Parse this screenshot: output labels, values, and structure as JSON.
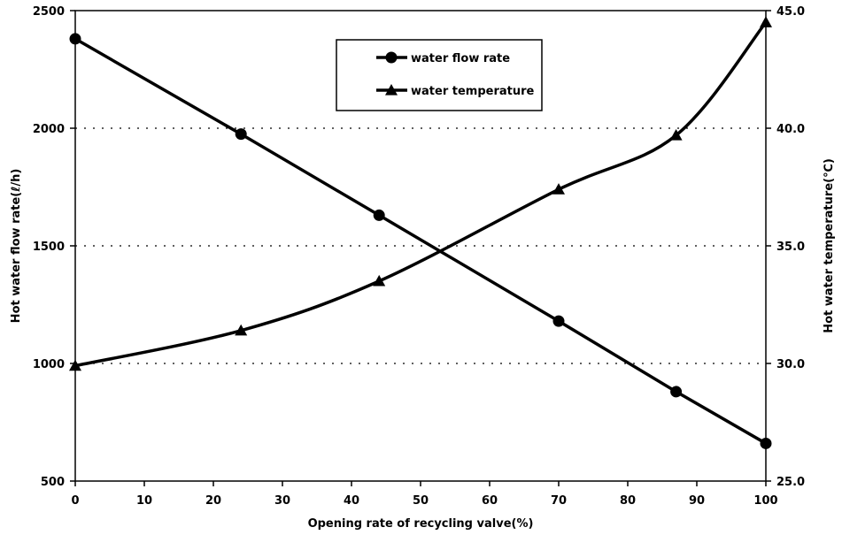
{
  "chart_data": {
    "type": "line",
    "xlabel": "Opening rate of recycling valve(%)",
    "ylabel_left": "Hot water flow rate(ℓ/h)",
    "ylabel_right": "Hot water temperature(℃)",
    "xlim": [
      0,
      100
    ],
    "ylim_left": [
      500,
      2500
    ],
    "ylim_right": [
      25.0,
      45.0
    ],
    "x_ticks": [
      "0",
      "10",
      "20",
      "30",
      "40",
      "50",
      "60",
      "70",
      "80",
      "90",
      "100"
    ],
    "y_left_ticks": [
      "500",
      "1000",
      "1500",
      "2000",
      "2500"
    ],
    "y_right_ticks": [
      "25.0",
      "30.0",
      "35.0",
      "40.0",
      "45.0"
    ],
    "grid": "horizontal dotted",
    "legend_position": "top-center",
    "series": [
      {
        "name": "water flow rate",
        "axis": "left",
        "marker": "circle",
        "color": "#000000",
        "x": [
          0,
          24,
          44,
          70,
          87,
          100
        ],
        "y": [
          2380,
          1975,
          1630,
          1180,
          880,
          660
        ]
      },
      {
        "name": "water temperature",
        "axis": "right",
        "marker": "triangle",
        "color": "#000000",
        "x": [
          0,
          24,
          44,
          70,
          87,
          100
        ],
        "y": [
          29.9,
          31.4,
          33.5,
          37.4,
          39.7,
          44.5
        ]
      }
    ]
  }
}
